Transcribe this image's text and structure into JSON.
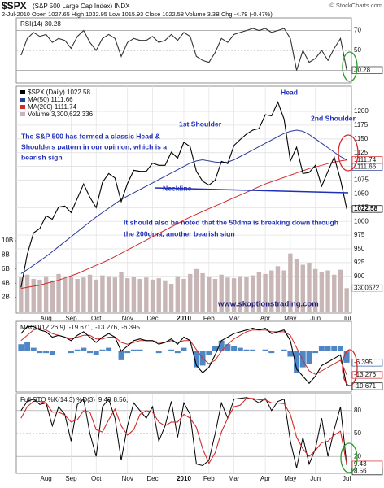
{
  "header": {
    "symbol": "$SPX",
    "name": "(S&P 500 Large Cap Index) INDX",
    "source": "© StockCharts.com",
    "quote": "2-Jul-2010   Open 1027.65  High 1032.95  Low 1015.93  Close 1022.58  Volume 3.3B  Chg -4.79 (-0.47%)"
  },
  "chart_data": [
    {
      "type": "line",
      "title": "RSI(14) 30.28",
      "ylim": [
        19,
        81
      ],
      "yticks": [
        70,
        50,
        30
      ],
      "grid": true,
      "series": [
        {
          "name": "RSI(14)",
          "color": "#333333",
          "values": [
            45,
            62,
            68,
            64,
            66,
            58,
            62,
            60,
            52,
            64,
            70,
            58,
            50,
            62,
            66,
            62,
            44,
            58,
            62,
            60,
            60,
            64,
            58,
            60,
            66,
            60,
            68,
            64,
            44,
            40,
            38,
            48,
            62,
            58,
            66,
            68,
            70,
            72,
            70,
            72,
            68,
            70,
            72,
            62,
            30,
            50,
            38,
            42,
            50,
            40,
            52,
            62,
            30.28
          ]
        }
      ]
    },
    {
      "type": "stock",
      "ylim": [
        836,
        1243
      ],
      "yticks": [
        875,
        900,
        925,
        950,
        975,
        1000,
        1025,
        1050,
        1075,
        1100,
        1125,
        1150,
        1175,
        1200
      ],
      "grid": true,
      "y2lim": [
        0,
        31.6
      ],
      "y2ticks": [
        {
          "value": 2,
          "label": "2B"
        },
        {
          "value": 4,
          "label": "4B"
        },
        {
          "value": 6,
          "label": "6B"
        },
        {
          "value": 8,
          "label": "8B"
        },
        {
          "value": 10,
          "label": "10B"
        }
      ],
      "categories": [
        null,
        null,
        null,
        null,
        "Aug",
        null,
        null,
        null,
        "Sep",
        null,
        null,
        null,
        "Oct",
        null,
        null,
        null,
        null,
        "Nov",
        null,
        null,
        null,
        "Dec",
        null,
        null,
        null,
        null,
        "2010",
        null,
        null,
        null,
        "Feb",
        null,
        null,
        null,
        "Mar",
        null,
        null,
        null,
        null,
        "Apr",
        null,
        null,
        null,
        "May",
        null,
        null,
        null,
        "Jun",
        null,
        null,
        null,
        null,
        "Jul"
      ],
      "series": [
        {
          "name": "Volume 3,300,622,336",
          "color": "#c8b6b6",
          "axis": "y2",
          "values": [
            4.8,
            5.2,
            4.6,
            4.5,
            5.0,
            4.4,
            5.3,
            4.7,
            4.9,
            4.6,
            4.8,
            5.2,
            4.5,
            5.1,
            5.0,
            4.8,
            5.6,
            4.7,
            4.9,
            4.6,
            4.8,
            4.5,
            4.7,
            4.4,
            3.9,
            5.0,
            4.6,
            5.3,
            6.0,
            5.4,
            4.9,
            4.6,
            5.2,
            4.8,
            4.7,
            5.0,
            4.9,
            5.1,
            5.6,
            5.3,
            5.8,
            6.4,
            5.8,
            8.2,
            7.4,
            6.6,
            6.9,
            6.0,
            5.6,
            5.8,
            5.2,
            5.9,
            3.3
          ],
          "value_labels": [
            null,
            null,
            null,
            null,
            null,
            null,
            null,
            null,
            null,
            null,
            null,
            null,
            null,
            null,
            null,
            null,
            null,
            null,
            null,
            null,
            null,
            null,
            null,
            null,
            null,
            null,
            null,
            null,
            null,
            null,
            null,
            null,
            null,
            null,
            null,
            null,
            null,
            null,
            null,
            null,
            null,
            null,
            null,
            null,
            null,
            null,
            null,
            null,
            null,
            null,
            null,
            null,
            "3300622"
          ]
        },
        {
          "name": "MA(200) 1111.74",
          "color": "#d42a2a",
          "values": [
            878,
            880,
            882,
            884,
            887,
            890,
            893,
            897,
            901,
            905,
            910,
            915,
            920,
            925,
            930,
            936,
            942,
            948,
            954,
            960,
            966,
            972,
            978,
            984,
            990,
            996,
            1002,
            1008,
            1013,
            1018,
            1023,
            1028,
            1033,
            1038,
            1043,
            1048,
            1053,
            1058,
            1063,
            1068,
            1072,
            1076,
            1080,
            1084,
            1088,
            1092,
            1096,
            1099,
            1102,
            1105,
            1108,
            1110,
            1111.74
          ]
        },
        {
          "name": "MA(50) 1111.66",
          "color": "#2a3a9a",
          "values": [
            905,
            912,
            920,
            928,
            936,
            945,
            954,
            963,
            972,
            981,
            990,
            999,
            1008,
            1016,
            1024,
            1032,
            1040,
            1046,
            1052,
            1058,
            1064,
            1070,
            1076,
            1082,
            1088,
            1094,
            1100,
            1106,
            1110,
            1112,
            1110,
            1108,
            1107,
            1108,
            1112,
            1118,
            1124,
            1130,
            1136,
            1142,
            1148,
            1154,
            1160,
            1164,
            1166,
            1164,
            1158,
            1150,
            1142,
            1134,
            1126,
            1118,
            1111.66
          ]
        },
        {
          "name": "$SPX (Daily) 1022.58",
          "color": "#000000",
          "values": [
            880,
            940,
            979,
            987,
            1010,
            1004,
            1026,
            1028,
            1016,
            1042,
            1068,
            1044,
            1025,
            1071,
            1087,
            1079,
            1036,
            1069,
            1093,
            1091,
            1091,
            1106,
            1102,
            1102,
            1126,
            1115,
            1144,
            1136,
            1091,
            1073,
            1066,
            1075,
            1109,
            1105,
            1138,
            1149,
            1159,
            1166,
            1169,
            1194,
            1192,
            1217,
            1186,
            1110,
            1135,
            1087,
            1089,
            1102,
            1064,
            1091,
            1117,
            1076,
            1022.58
          ]
        }
      ],
      "annotations": [
        {
          "text": "Head"
        },
        {
          "text": "1st Shoulder"
        },
        {
          "text": "2nd Shoulder"
        },
        {
          "text": "Neckline"
        },
        {
          "lines": [
            "The S&P 500 has formed a classic Head &",
            "Shoulders pattern in our opinion, which is a",
            "bearish sign"
          ]
        },
        {
          "lines": [
            "It should also be noted that the 50dma is breaking down through",
            "the 200dma, another bearish sign"
          ]
        },
        {
          "text": "www.skoptionstrading.com"
        }
      ]
    },
    {
      "type": "macd",
      "title": "MACD(12,26,9)",
      "ylim": [
        -22,
        16
      ],
      "series": [
        {
          "name": "-6.395",
          "color": "#4f86c6",
          "type": "bar",
          "values": [
            4,
            5,
            2,
            -1,
            -1,
            -2,
            0,
            0,
            -1,
            1,
            2,
            -1,
            -2,
            1,
            2,
            0,
            -5,
            -1,
            1,
            1,
            0,
            0,
            -1,
            0,
            1,
            -1,
            2,
            0,
            -9,
            -8,
            -2,
            3,
            6,
            4,
            3,
            2,
            1,
            1,
            0,
            1,
            -1,
            0,
            1,
            -3,
            -12,
            -9,
            -7,
            -1,
            3,
            3,
            3,
            3,
            -6.395
          ]
        },
        {
          "name": "-13.276,",
          "color": "#d42a2a",
          "values": [
            6,
            9,
            12,
            13,
            12,
            10,
            9,
            8,
            7,
            8,
            9,
            9,
            7,
            7,
            8,
            8,
            5,
            4,
            5,
            6,
            6,
            6,
            5,
            5,
            6,
            5,
            6,
            6,
            1,
            -4,
            -7,
            -5,
            0,
            4,
            7,
            9,
            11,
            12,
            12,
            12,
            11,
            11,
            11,
            9,
            2,
            -5,
            -11,
            -13,
            -11,
            -9,
            -7,
            -5,
            -13.276
          ]
        },
        {
          "name": "-19.671,",
          "color": "#000000",
          "values": [
            10,
            14,
            14,
            12,
            11,
            8,
            9,
            8,
            6,
            9,
            11,
            8,
            5,
            8,
            10,
            8,
            0,
            3,
            6,
            7,
            6,
            6,
            4,
            5,
            7,
            4,
            8,
            6,
            -8,
            -12,
            -9,
            -2,
            6,
            8,
            10,
            11,
            12,
            13,
            12,
            13,
            10,
            11,
            12,
            6,
            -10,
            -14,
            -18,
            -14,
            -8,
            -6,
            -4,
            -2,
            -19.671
          ]
        }
      ]
    },
    {
      "type": "line",
      "title": "Full STO %K(14,3) %D(3)",
      "ylim": [
        0,
        100
      ],
      "yticks": [
        80,
        50,
        20
      ],
      "grid": true,
      "categories": [
        null,
        null,
        null,
        null,
        "Aug",
        null,
        null,
        null,
        "Sep",
        null,
        null,
        null,
        "Oct",
        null,
        null,
        null,
        null,
        "Nov",
        null,
        null,
        null,
        "Dec",
        null,
        null,
        null,
        null,
        "2010",
        null,
        null,
        null,
        "Feb",
        null,
        null,
        null,
        "Mar",
        null,
        null,
        null,
        null,
        "Apr",
        null,
        null,
        null,
        "May",
        null,
        null,
        null,
        "Jun",
        null,
        null,
        null,
        null,
        "Jul"
      ],
      "series": [
        {
          "name": "8.56,",
          "color": "#000000",
          "values": [
            80,
            92,
            95,
            88,
            90,
            60,
            85,
            75,
            40,
            88,
            95,
            50,
            20,
            85,
            95,
            70,
            15,
            60,
            90,
            80,
            70,
            85,
            40,
            60,
            92,
            45,
            90,
            75,
            10,
            8,
            15,
            50,
            90,
            70,
            95,
            96,
            97,
            95,
            90,
            96,
            80,
            92,
            95,
            40,
            5,
            45,
            10,
            30,
            70,
            20,
            55,
            85,
            8.56
          ]
        },
        {
          "name": "9.43",
          "color": "#d42a2a",
          "values": [
            70,
            85,
            92,
            92,
            90,
            78,
            78,
            74,
            65,
            68,
            80,
            78,
            55,
            52,
            68,
            82,
            60,
            48,
            55,
            75,
            80,
            78,
            65,
            60,
            65,
            65,
            75,
            70,
            58,
            30,
            11,
            25,
            52,
            70,
            85,
            87,
            96,
            96,
            94,
            94,
            90,
            90,
            89,
            75,
            45,
            30,
            20,
            28,
            38,
            40,
            48,
            53,
            9.43
          ]
        }
      ]
    }
  ]
}
